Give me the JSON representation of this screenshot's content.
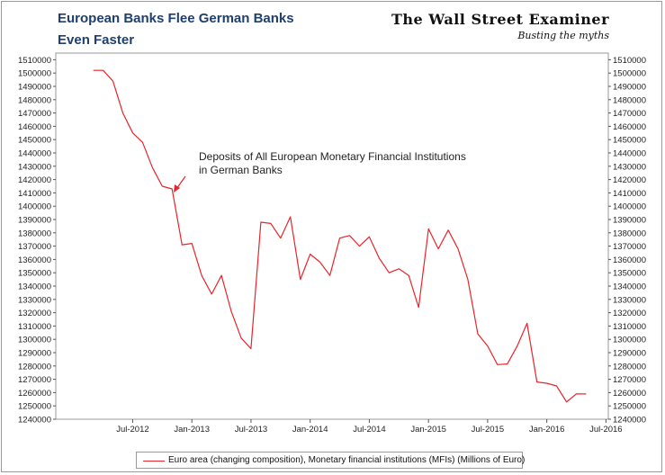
{
  "chart_data": {
    "type": "line",
    "title": "European Banks Flee German Banks",
    "title_line2": "Even Faster",
    "brand": "The Wall Street Examiner",
    "tagline": "Busting the myths",
    "annotation": "Deposits of All European Monetary Financial Institutions",
    "annotation_line2": "in German Banks",
    "xlim": [
      2011.85,
      2016.52
    ],
    "ylim": [
      1240000,
      1515000
    ],
    "y_ticks": [
      1240000,
      1250000,
      1260000,
      1270000,
      1280000,
      1290000,
      1300000,
      1310000,
      1320000,
      1330000,
      1340000,
      1350000,
      1360000,
      1370000,
      1380000,
      1390000,
      1400000,
      1410000,
      1420000,
      1430000,
      1440000,
      1450000,
      1460000,
      1470000,
      1480000,
      1490000,
      1500000,
      1510000
    ],
    "x_ticks": [
      {
        "label": "Jul-2012",
        "value": 2012.5
      },
      {
        "label": "Jan-2013",
        "value": 2013.0
      },
      {
        "label": "Jul-2013",
        "value": 2013.5
      },
      {
        "label": "Jan-2014",
        "value": 2014.0
      },
      {
        "label": "Jul-2014",
        "value": 2014.5
      },
      {
        "label": "Jan-2015",
        "value": 2015.0
      },
      {
        "label": "Jul-2015",
        "value": 2015.5
      },
      {
        "label": "Jan-2016",
        "value": 2016.0
      },
      {
        "label": "Jul-2016",
        "value": 2016.5
      }
    ],
    "series": [
      {
        "name": "Euro area (changing composition), Monetary financial institutions (MFIs) (Millions of Euro)",
        "color": "#e8242c",
        "x": [
          2012.167,
          2012.25,
          2012.333,
          2012.417,
          2012.5,
          2012.583,
          2012.667,
          2012.75,
          2012.833,
          2012.917,
          2013.0,
          2013.083,
          2013.167,
          2013.25,
          2013.333,
          2013.417,
          2013.5,
          2013.583,
          2013.667,
          2013.75,
          2013.833,
          2013.917,
          2014.0,
          2014.083,
          2014.167,
          2014.25,
          2014.333,
          2014.417,
          2014.5,
          2014.583,
          2014.667,
          2014.75,
          2014.833,
          2014.917,
          2015.0,
          2015.083,
          2015.167,
          2015.25,
          2015.333,
          2015.417,
          2015.5,
          2015.583,
          2015.667,
          2015.75,
          2015.833,
          2015.917,
          2016.0,
          2016.083,
          2016.167,
          2016.25,
          2016.333
        ],
        "values": [
          1502000,
          1502000,
          1494000,
          1470000,
          1455000,
          1448000,
          1429000,
          1415000,
          1413000,
          1371000,
          1372000,
          1348000,
          1334000,
          1348000,
          1321000,
          1301000,
          1293000,
          1388000,
          1387000,
          1376000,
          1392000,
          1345000,
          1364000,
          1358000,
          1348000,
          1376000,
          1378000,
          1370000,
          1377000,
          1361000,
          1350000,
          1353000,
          1348000,
          1324000,
          1383000,
          1368000,
          1382000,
          1368000,
          1345000,
          1304000,
          1295000,
          1281000,
          1281500,
          1295000,
          1312000,
          1268000,
          1267000,
          1265000,
          1253000,
          1259000,
          1259000
        ]
      }
    ],
    "grid": false,
    "legend": "bottom"
  }
}
